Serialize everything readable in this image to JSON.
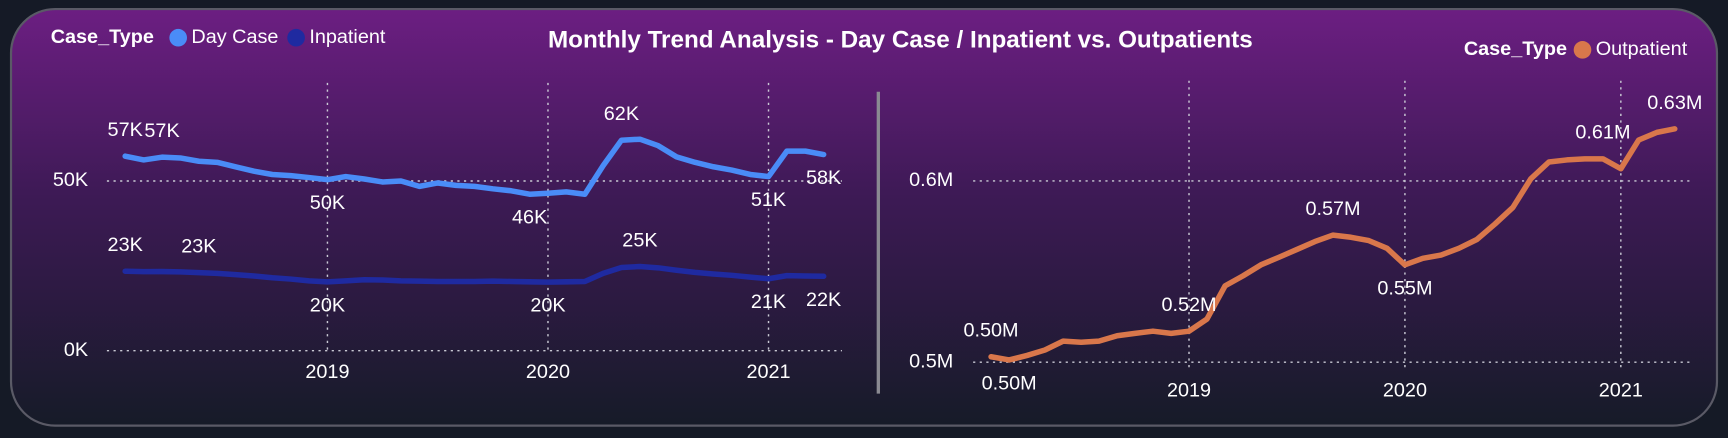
{
  "title": "Monthly Trend Analysis - Day Case / Inpatient vs. Outpatients",
  "chart_data": [
    {
      "type": "line",
      "legend_title": "Case_Type",
      "legend": "top-left",
      "x": [
        2018.083,
        2018.167,
        2018.25,
        2018.333,
        2018.417,
        2018.5,
        2018.583,
        2018.667,
        2018.75,
        2018.833,
        2018.917,
        2019,
        2019.083,
        2019.167,
        2019.25,
        2019.333,
        2019.417,
        2019.5,
        2019.583,
        2019.667,
        2019.75,
        2019.833,
        2019.917,
        2020,
        2020.083,
        2020.167,
        2020.25,
        2020.333,
        2020.417,
        2020.5,
        2020.583,
        2020.667,
        2020.75,
        2020.833,
        2020.917,
        2021,
        2021.083,
        2021.167,
        2021.25
      ],
      "xlim": [
        2018,
        2021.333
      ],
      "xticks": [
        2019,
        2020,
        2021
      ],
      "ylim": [
        0,
        75000
      ],
      "yticks": [
        {
          "value": 0,
          "label": "0K"
        },
        {
          "value": 50000,
          "label": "50K"
        }
      ],
      "grid": true,
      "series": [
        {
          "name": "Day Case",
          "color": "#4a8cf7",
          "values": [
            57300,
            56200,
            57000,
            56800,
            55800,
            55500,
            54200,
            52900,
            51900,
            51600,
            51000,
            50400,
            51300,
            50600,
            49700,
            50000,
            48400,
            49400,
            48700,
            48400,
            47700,
            47100,
            46100,
            46400,
            46800,
            46100,
            54500,
            62000,
            62300,
            60400,
            57100,
            55500,
            54200,
            53200,
            51900,
            51300,
            58800,
            58800,
            57800
          ],
          "value_labels": [
            "57K",
            null,
            "57K",
            null,
            null,
            null,
            null,
            null,
            null,
            null,
            null,
            "50K",
            null,
            null,
            null,
            null,
            null,
            null,
            null,
            null,
            null,
            null,
            "46K",
            null,
            null,
            null,
            null,
            "62K",
            null,
            null,
            null,
            null,
            null,
            null,
            null,
            "51K",
            null,
            null,
            "58K"
          ]
        },
        {
          "name": "Inpatient",
          "color": "#1f2aa0",
          "values": [
            23400,
            23300,
            23300,
            23200,
            23000,
            22800,
            22400,
            22000,
            21500,
            21100,
            20600,
            20300,
            20600,
            20900,
            20800,
            20600,
            20500,
            20400,
            20400,
            20400,
            20500,
            20400,
            20300,
            20200,
            20300,
            20400,
            22800,
            24500,
            24800,
            24400,
            23700,
            23100,
            22600,
            22200,
            21700,
            21200,
            22100,
            22000,
            21900
          ],
          "value_labels": [
            "23K",
            null,
            null,
            null,
            "23K",
            null,
            null,
            null,
            null,
            null,
            null,
            "20K",
            null,
            null,
            null,
            null,
            null,
            null,
            null,
            null,
            null,
            null,
            null,
            "20K",
            null,
            null,
            null,
            null,
            "25K",
            null,
            null,
            null,
            null,
            null,
            null,
            "21K",
            null,
            null,
            "22K"
          ]
        }
      ]
    },
    {
      "type": "line",
      "legend_title": "Case_Type",
      "legend": "top-right",
      "x": [
        2018.083,
        2018.167,
        2018.25,
        2018.333,
        2018.417,
        2018.5,
        2018.583,
        2018.667,
        2018.75,
        2018.833,
        2018.917,
        2019,
        2019.083,
        2019.167,
        2019.25,
        2019.333,
        2019.417,
        2019.5,
        2019.583,
        2019.667,
        2019.75,
        2019.833,
        2019.917,
        2020,
        2020.083,
        2020.167,
        2020.25,
        2020.333,
        2020.417,
        2020.5,
        2020.583,
        2020.667,
        2020.75,
        2020.833,
        2020.917,
        2021,
        2021.083,
        2021.167,
        2021.25
      ],
      "xlim": [
        2018,
        2021.333
      ],
      "xticks": [
        2019,
        2020,
        2021
      ],
      "ylim": [
        496000,
        648000
      ],
      "yticks": [
        {
          "value": 500000,
          "label": "0.5M"
        },
        {
          "value": 600000,
          "label": "0.6M"
        }
      ],
      "grid": true,
      "series": [
        {
          "name": "Outpatient",
          "color": "#d9774b",
          "values": [
            503000,
            501200,
            503700,
            506700,
            511600,
            511000,
            511600,
            514600,
            515900,
            517100,
            515900,
            517100,
            523800,
            542100,
            547600,
            553700,
            557900,
            562200,
            566500,
            570100,
            568900,
            567100,
            562800,
            553700,
            557300,
            559100,
            562800,
            567700,
            576200,
            585400,
            601200,
            610400,
            611600,
            612200,
            612200,
            606700,
            622600,
            626800,
            628700
          ],
          "value_labels": [
            "0.50M",
            "0.50M",
            null,
            null,
            null,
            null,
            null,
            null,
            null,
            null,
            null,
            "0.52M",
            null,
            null,
            null,
            null,
            null,
            null,
            null,
            "0.57M",
            null,
            null,
            null,
            "0.55M",
            null,
            null,
            null,
            null,
            null,
            null,
            null,
            null,
            null,
            null,
            "0.61M",
            null,
            null,
            null,
            "0.63M"
          ]
        }
      ]
    }
  ]
}
